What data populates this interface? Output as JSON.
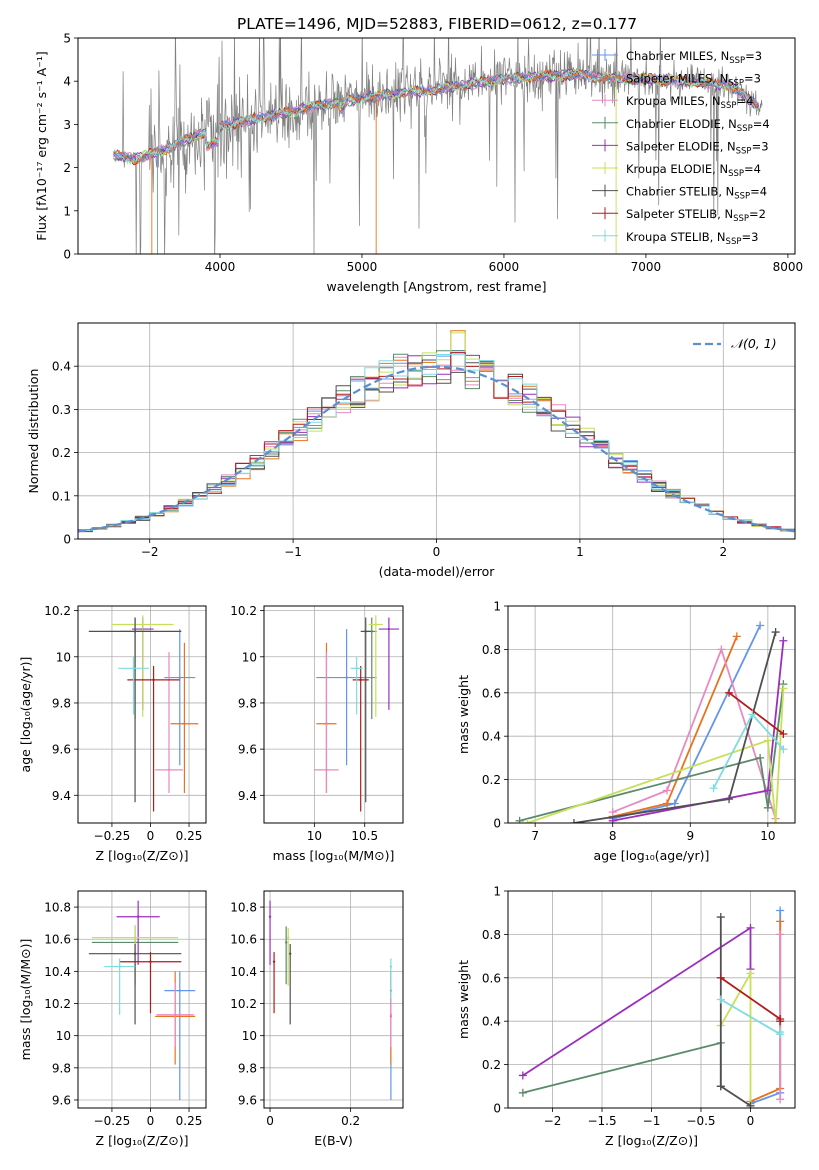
{
  "figure": {
    "title": "PLATE=1496, MJD=52883, FIBERID=0612, z=0.177"
  },
  "colors": {
    "c1": "#6495ed",
    "c2": "#e8731e",
    "c3": "#e88ac0",
    "c4": "#5b8a6b",
    "c5": "#9b2fbd",
    "c6": "#c6e05a",
    "c7": "#505050",
    "c8": "#b01c1c",
    "c9": "#7edce0",
    "data": "#808080"
  },
  "chart_data": [
    {
      "id": "spectrum",
      "type": "line",
      "title": "PLATE=1496, MJD=52883, FIBERID=0612, z=0.177",
      "xlabel": "wavelength [Angstrom, rest frame]",
      "ylabel": "Flux [fλ10⁻¹⁷ erg cm⁻² s⁻¹ A⁻¹]",
      "xlim": [
        3000,
        8050
      ],
      "ylim": [
        0,
        5
      ],
      "xticks": [
        4000,
        5000,
        6000,
        7000,
        8000
      ],
      "yticks": [
        0,
        1,
        2,
        3,
        4,
        5
      ],
      "grid": false,
      "legend_position": "right",
      "legend": [
        {
          "label": "Chabrier MILES, N",
          "sub": "SSP",
          "suffix": "=3",
          "color": "c1"
        },
        {
          "label": "Salpeter MILES, N",
          "sub": "SSP",
          "suffix": "=3",
          "color": "c2"
        },
        {
          "label": "Kroupa MILES, N",
          "sub": "SSP",
          "suffix": "=4",
          "color": "c3"
        },
        {
          "label": "Chabrier ELODIE, N",
          "sub": "SSP",
          "suffix": "=4",
          "color": "c4"
        },
        {
          "label": "Salpeter ELODIE, N",
          "sub": "SSP",
          "suffix": "=3",
          "color": "c5"
        },
        {
          "label": "Kroupa ELODIE, N",
          "sub": "SSP",
          "suffix": "=4",
          "color": "c6"
        },
        {
          "label": "Chabrier STELIB, N",
          "sub": "SSP",
          "suffix": "=4",
          "color": "c7"
        },
        {
          "label": "Salpeter STELIB, N",
          "sub": "SSP",
          "suffix": "=2",
          "color": "c8"
        },
        {
          "label": "Kroupa STELIB, N",
          "sub": "SSP",
          "suffix": "=3",
          "color": "c9"
        }
      ],
      "continuum": {
        "x": [
          3250,
          3400,
          3600,
          3800,
          4000,
          4200,
          4500,
          4800,
          5000,
          5200,
          5500,
          5800,
          6000,
          6200,
          6500,
          6800,
          7000,
          7300,
          7600,
          7800
        ],
        "y": [
          2.3,
          2.2,
          2.4,
          2.7,
          2.95,
          3.1,
          3.3,
          3.5,
          3.6,
          3.7,
          3.8,
          3.95,
          4.05,
          4.1,
          4.15,
          4.05,
          4.05,
          4.0,
          3.9,
          3.4
        ]
      }
    },
    {
      "id": "residuals",
      "type": "line",
      "xlabel": "(data-model)/error",
      "ylabel": "Normed distribution",
      "xlim": [
        -2.5,
        2.5
      ],
      "ylim": [
        0,
        0.5
      ],
      "xticks": [
        -2,
        -1,
        0,
        1,
        2
      ],
      "yticks": [
        0.0,
        0.1,
        0.2,
        0.3,
        0.4
      ],
      "grid": true,
      "legend_position": "top-right",
      "legend_label": "𝒩(0, 1)"
    },
    {
      "id": "age_vs_Z",
      "type": "scatter",
      "xlabel": "Z [log₁₀(Z/Z⊙)]",
      "ylabel": "age  [log₁₀(age/yr)]",
      "xlim": [
        -0.47,
        0.36
      ],
      "ylim": [
        9.28,
        10.22
      ],
      "xticks": [
        -0.25,
        0.0,
        0.25
      ],
      "yticks": [
        9.4,
        9.6,
        9.8,
        10.0,
        10.2
      ],
      "grid": true,
      "series": [
        {
          "color": "c1",
          "x": 0.19,
          "xerr": 0.1,
          "y": 9.91,
          "yerr": [
            0.38,
            0.21
          ]
        },
        {
          "color": "c2",
          "x": 0.22,
          "xerr": 0.09,
          "y": 9.71,
          "yerr": [
            0.3,
            0.35
          ]
        },
        {
          "color": "c3",
          "x": 0.12,
          "xerr": 0.09,
          "y": 9.51,
          "yerr": [
            0.1,
            0.51
          ]
        },
        {
          "color": "c4",
          "x": -0.1,
          "xerr": 0.1,
          "y": 10.11,
          "yerr": [
            0.38,
            0.06
          ]
        },
        {
          "color": "c5",
          "x": -0.05,
          "xerr": 0.07,
          "y": 10.12,
          "yerr": [
            0.35,
            0.05
          ]
        },
        {
          "color": "c6",
          "x": -0.05,
          "xerr": 0.2,
          "y": 10.14,
          "yerr": [
            0.4,
            0.04
          ]
        },
        {
          "color": "c7",
          "x": -0.1,
          "xerr": 0.3,
          "y": 10.11,
          "yerr": [
            0.74,
            0.06
          ]
        },
        {
          "color": "c8",
          "x": 0.02,
          "xerr": 0.17,
          "y": 9.9,
          "yerr": [
            0.57,
            0.06
          ]
        },
        {
          "color": "c9",
          "x": -0.11,
          "xerr": 0.1,
          "y": 9.95,
          "yerr": [
            0.2,
            0.05
          ]
        }
      ]
    },
    {
      "id": "age_vs_mass",
      "type": "scatter",
      "xlabel": "mass [log₁₀(M/M⊙)]",
      "ylabel": "",
      "xlim": [
        9.5,
        10.88
      ],
      "ylim": [
        9.28,
        10.22
      ],
      "xticks": [
        10.0,
        10.5
      ],
      "yticks": [
        9.4,
        9.6,
        9.8,
        10.0,
        10.2
      ],
      "grid": true,
      "series": [
        {
          "color": "c1",
          "x": 10.32,
          "xerr": 0.3,
          "y": 9.91,
          "yerr": [
            0.38,
            0.21
          ]
        },
        {
          "color": "c2",
          "x": 10.12,
          "xerr": 0.1,
          "y": 9.71,
          "yerr": [
            0.3,
            0.35
          ]
        },
        {
          "color": "c3",
          "x": 10.12,
          "xerr": 0.12,
          "y": 9.51,
          "yerr": [
            0.1,
            0.51
          ]
        },
        {
          "color": "c4",
          "x": 10.57,
          "xerr": 0.05,
          "y": 10.11,
          "yerr": [
            0.38,
            0.06
          ]
        },
        {
          "color": "c5",
          "x": 10.74,
          "xerr": 0.1,
          "y": 10.12,
          "yerr": [
            0.35,
            0.05
          ]
        },
        {
          "color": "c6",
          "x": 10.61,
          "xerr": 0.07,
          "y": 10.14,
          "yerr": [
            0.4,
            0.04
          ]
        },
        {
          "color": "c7",
          "x": 10.51,
          "xerr": 0.05,
          "y": 10.11,
          "yerr": [
            0.74,
            0.06
          ]
        },
        {
          "color": "c8",
          "x": 10.46,
          "xerr": 0.08,
          "y": 9.9,
          "yerr": [
            0.57,
            0.06
          ]
        },
        {
          "color": "c9",
          "x": 10.42,
          "xerr": 0.06,
          "y": 9.95,
          "yerr": [
            0.2,
            0.05
          ]
        }
      ]
    },
    {
      "id": "massweight_vs_age",
      "type": "line",
      "xlabel": "age  [log₁₀(age/yr)]",
      "ylabel": "mass weight",
      "xlim": [
        6.65,
        10.35
      ],
      "ylim": [
        0,
        1
      ],
      "xticks": [
        7,
        8,
        9,
        10
      ],
      "yticks": [
        0.0,
        0.2,
        0.4,
        0.6,
        0.8,
        1.0
      ],
      "grid": true,
      "series": [
        {
          "color": "c1",
          "x": [
            8.0,
            8.8,
            9.9
          ],
          "y": [
            0.02,
            0.09,
            0.91
          ]
        },
        {
          "color": "c2",
          "x": [
            8.0,
            8.7,
            9.6
          ],
          "y": [
            0.03,
            0.09,
            0.86
          ]
        },
        {
          "color": "c3",
          "x": [
            8.0,
            8.7,
            9.4,
            10.1
          ],
          "y": [
            0.05,
            0.15,
            0.8,
            0.02
          ]
        },
        {
          "color": "c4",
          "x": [
            6.8,
            9.9,
            10.0,
            10.2
          ],
          "y": [
            0.01,
            0.3,
            0.07,
            0.64
          ]
        },
        {
          "color": "c5",
          "x": [
            8.0,
            10.0,
            10.2
          ],
          "y": [
            0.01,
            0.15,
            0.84
          ]
        },
        {
          "color": "c6",
          "x": [
            6.9,
            10.0,
            10.1,
            10.2
          ],
          "y": [
            0.0,
            0.38,
            0.0,
            0.62
          ]
        },
        {
          "color": "c7",
          "x": [
            7.5,
            9.5,
            10.1
          ],
          "y": [
            0.0,
            0.11,
            0.88
          ]
        },
        {
          "color": "c8",
          "x": [
            9.5,
            10.2
          ],
          "y": [
            0.6,
            0.41
          ]
        },
        {
          "color": "c9",
          "x": [
            9.3,
            9.8,
            10.2
          ],
          "y": [
            0.16,
            0.5,
            0.34
          ]
        }
      ]
    },
    {
      "id": "mass_vs_Z",
      "type": "scatter",
      "xlabel": "Z [log₁₀(Z/Z⊙)]",
      "ylabel": "mass [log₁₀(M/M⊙)]",
      "xlim": [
        -0.47,
        0.36
      ],
      "ylim": [
        9.55,
        10.9
      ],
      "xticks": [
        -0.25,
        0.0,
        0.25
      ],
      "yticks": [
        9.6,
        9.8,
        10.0,
        10.2,
        10.4,
        10.6,
        10.8
      ],
      "grid": true,
      "series": [
        {
          "color": "c1",
          "x": 0.19,
          "xerr": 0.1,
          "y": 10.28,
          "yerr": [
            0.68,
            0.12
          ]
        },
        {
          "color": "c2",
          "x": 0.16,
          "xerr": 0.13,
          "y": 10.12,
          "yerr": [
            0.3,
            0.28
          ]
        },
        {
          "color": "c3",
          "x": 0.16,
          "xerr": 0.12,
          "y": 10.13,
          "yerr": [
            0.2,
            0.2
          ]
        },
        {
          "color": "c4",
          "x": -0.1,
          "xerr": 0.28,
          "y": 10.58,
          "yerr": [
            0.26,
            0.1
          ]
        },
        {
          "color": "c5",
          "x": -0.08,
          "xerr": 0.14,
          "y": 10.74,
          "yerr": [
            0.3,
            0.1
          ]
        },
        {
          "color": "c6",
          "x": -0.1,
          "xerr": 0.28,
          "y": 10.61,
          "yerr": [
            0.3,
            0.08
          ]
        },
        {
          "color": "c7",
          "x": -0.1,
          "xerr": 0.3,
          "y": 10.51,
          "yerr": [
            0.44,
            0.06
          ]
        },
        {
          "color": "c8",
          "x": 0.0,
          "xerr": 0.2,
          "y": 10.46,
          "yerr": [
            0.32,
            0.06
          ]
        },
        {
          "color": "c9",
          "x": -0.2,
          "xerr": 0.1,
          "y": 10.43,
          "yerr": [
            0.3,
            0.05
          ]
        }
      ]
    },
    {
      "id": "mass_vs_EBV",
      "type": "scatter",
      "xlabel": "E(B-V)",
      "ylabel": "",
      "xlim": [
        -0.015,
        0.33
      ],
      "ylim": [
        9.55,
        10.9
      ],
      "xticks": [
        0.0,
        0.2
      ],
      "yticks": [
        9.6,
        9.8,
        10.0,
        10.2,
        10.4,
        10.6,
        10.8
      ],
      "grid": true,
      "series": [
        {
          "color": "c1",
          "x": 0.3,
          "xerr": 0.0,
          "y": 10.28,
          "yerr": [
            0.68,
            0.12
          ]
        },
        {
          "color": "c2",
          "x": 0.3,
          "xerr": 0.0,
          "y": 10.12,
          "yerr": [
            0.3,
            0.28
          ]
        },
        {
          "color": "c3",
          "x": 0.3,
          "xerr": 0.0,
          "y": 10.13,
          "yerr": [
            0.2,
            0.3
          ]
        },
        {
          "color": "c4",
          "x": 0.04,
          "xerr": 0.0,
          "y": 10.58,
          "yerr": [
            0.26,
            0.1
          ]
        },
        {
          "color": "c5",
          "x": 0.0,
          "xerr": 0.0,
          "y": 10.74,
          "yerr": [
            0.3,
            0.1
          ]
        },
        {
          "color": "c6",
          "x": 0.045,
          "xerr": 0.0,
          "y": 10.61,
          "yerr": [
            0.3,
            0.06
          ]
        },
        {
          "color": "c7",
          "x": 0.05,
          "xerr": 0.0,
          "y": 10.51,
          "yerr": [
            0.44,
            0.06
          ]
        },
        {
          "color": "c8",
          "x": 0.01,
          "xerr": 0.0,
          "y": 10.46,
          "yerr": [
            0.32,
            0.06
          ]
        },
        {
          "color": "c9",
          "x": 0.3,
          "xerr": 0.0,
          "y": 10.43,
          "yerr": [
            0.2,
            0.05
          ]
        }
      ]
    },
    {
      "id": "massweight_vs_Z",
      "type": "line",
      "xlabel": "Z [log₁₀(Z/Z⊙)]",
      "ylabel": "mass weight",
      "xlim": [
        -2.45,
        0.45
      ],
      "ylim": [
        0,
        1
      ],
      "xticks": [
        -2.0,
        -1.5,
        -1.0,
        -0.5,
        0.0
      ],
      "yticks": [
        0.0,
        0.2,
        0.4,
        0.6,
        0.8,
        1.0
      ],
      "grid": true,
      "series": [
        {
          "color": "c1",
          "x": [
            0.3,
            0.3,
            0.0
          ],
          "y": [
            0.91,
            0.07,
            0.02
          ]
        },
        {
          "color": "c2",
          "x": [
            0.3,
            0.3,
            0.0
          ],
          "y": [
            0.86,
            0.09,
            0.03
          ]
        },
        {
          "color": "c3",
          "x": [
            0.3,
            0.3
          ],
          "y": [
            0.8,
            0.04
          ]
        },
        {
          "color": "c4",
          "x": [
            -2.3,
            -0.3,
            -0.3
          ],
          "y": [
            0.07,
            0.3,
            0.1
          ]
        },
        {
          "color": "c5",
          "x": [
            -2.3,
            0.0,
            0.0
          ],
          "y": [
            0.15,
            0.83,
            0.64
          ]
        },
        {
          "color": "c6",
          "x": [
            -0.3,
            0.0,
            0.0
          ],
          "y": [
            0.38,
            0.62,
            0.0
          ]
        },
        {
          "color": "c7",
          "x": [
            -0.3,
            -0.3,
            0.0
          ],
          "y": [
            0.88,
            0.1,
            0.01
          ]
        },
        {
          "color": "c8",
          "x": [
            -0.3,
            0.3,
            0.3
          ],
          "y": [
            0.6,
            0.41,
            0.4
          ]
        },
        {
          "color": "c9",
          "x": [
            -0.3,
            0.3,
            0.3
          ],
          "y": [
            0.5,
            0.34,
            0.35
          ]
        }
      ]
    }
  ]
}
